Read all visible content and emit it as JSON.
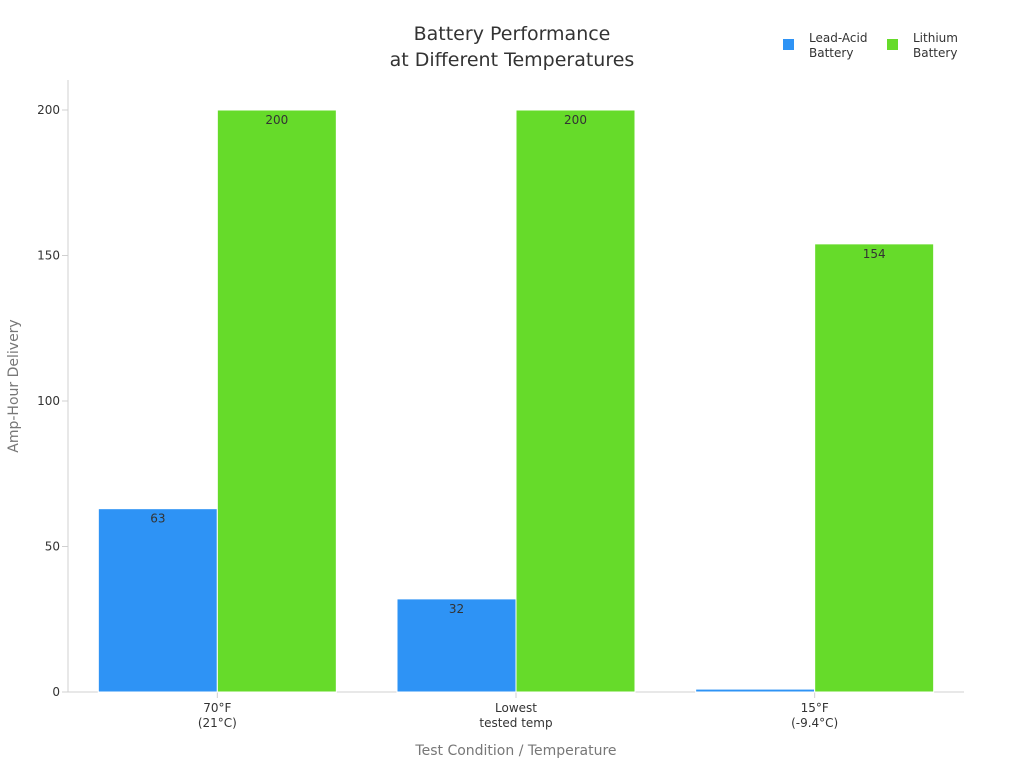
{
  "chart_data": {
    "type": "bar",
    "title": [
      "Battery Performance",
      "at Different Temperatures"
    ],
    "xlabel": "Test Condition / Temperature",
    "ylabel": "Amp-Hour Delivery",
    "ylim": [
      0,
      210
    ],
    "yticks": [
      0,
      50,
      100,
      150,
      200
    ],
    "categories": [
      [
        "70°F",
        "(21°C)"
      ],
      [
        "Lowest",
        "tested temp"
      ],
      [
        "15°F",
        "(-9.4°C)"
      ]
    ],
    "series": [
      {
        "name": [
          "Lead-Acid",
          "Battery"
        ],
        "color": "#2e93f5",
        "values": [
          63,
          32,
          1
        ],
        "labels": [
          "63",
          "32",
          ""
        ]
      },
      {
        "name": [
          "Lithium",
          "Battery"
        ],
        "color": "#66db2a",
        "values": [
          200,
          200,
          154
        ],
        "labels": [
          "200",
          "200",
          "154"
        ]
      }
    ],
    "legend_position": "top-right",
    "grid": false
  }
}
